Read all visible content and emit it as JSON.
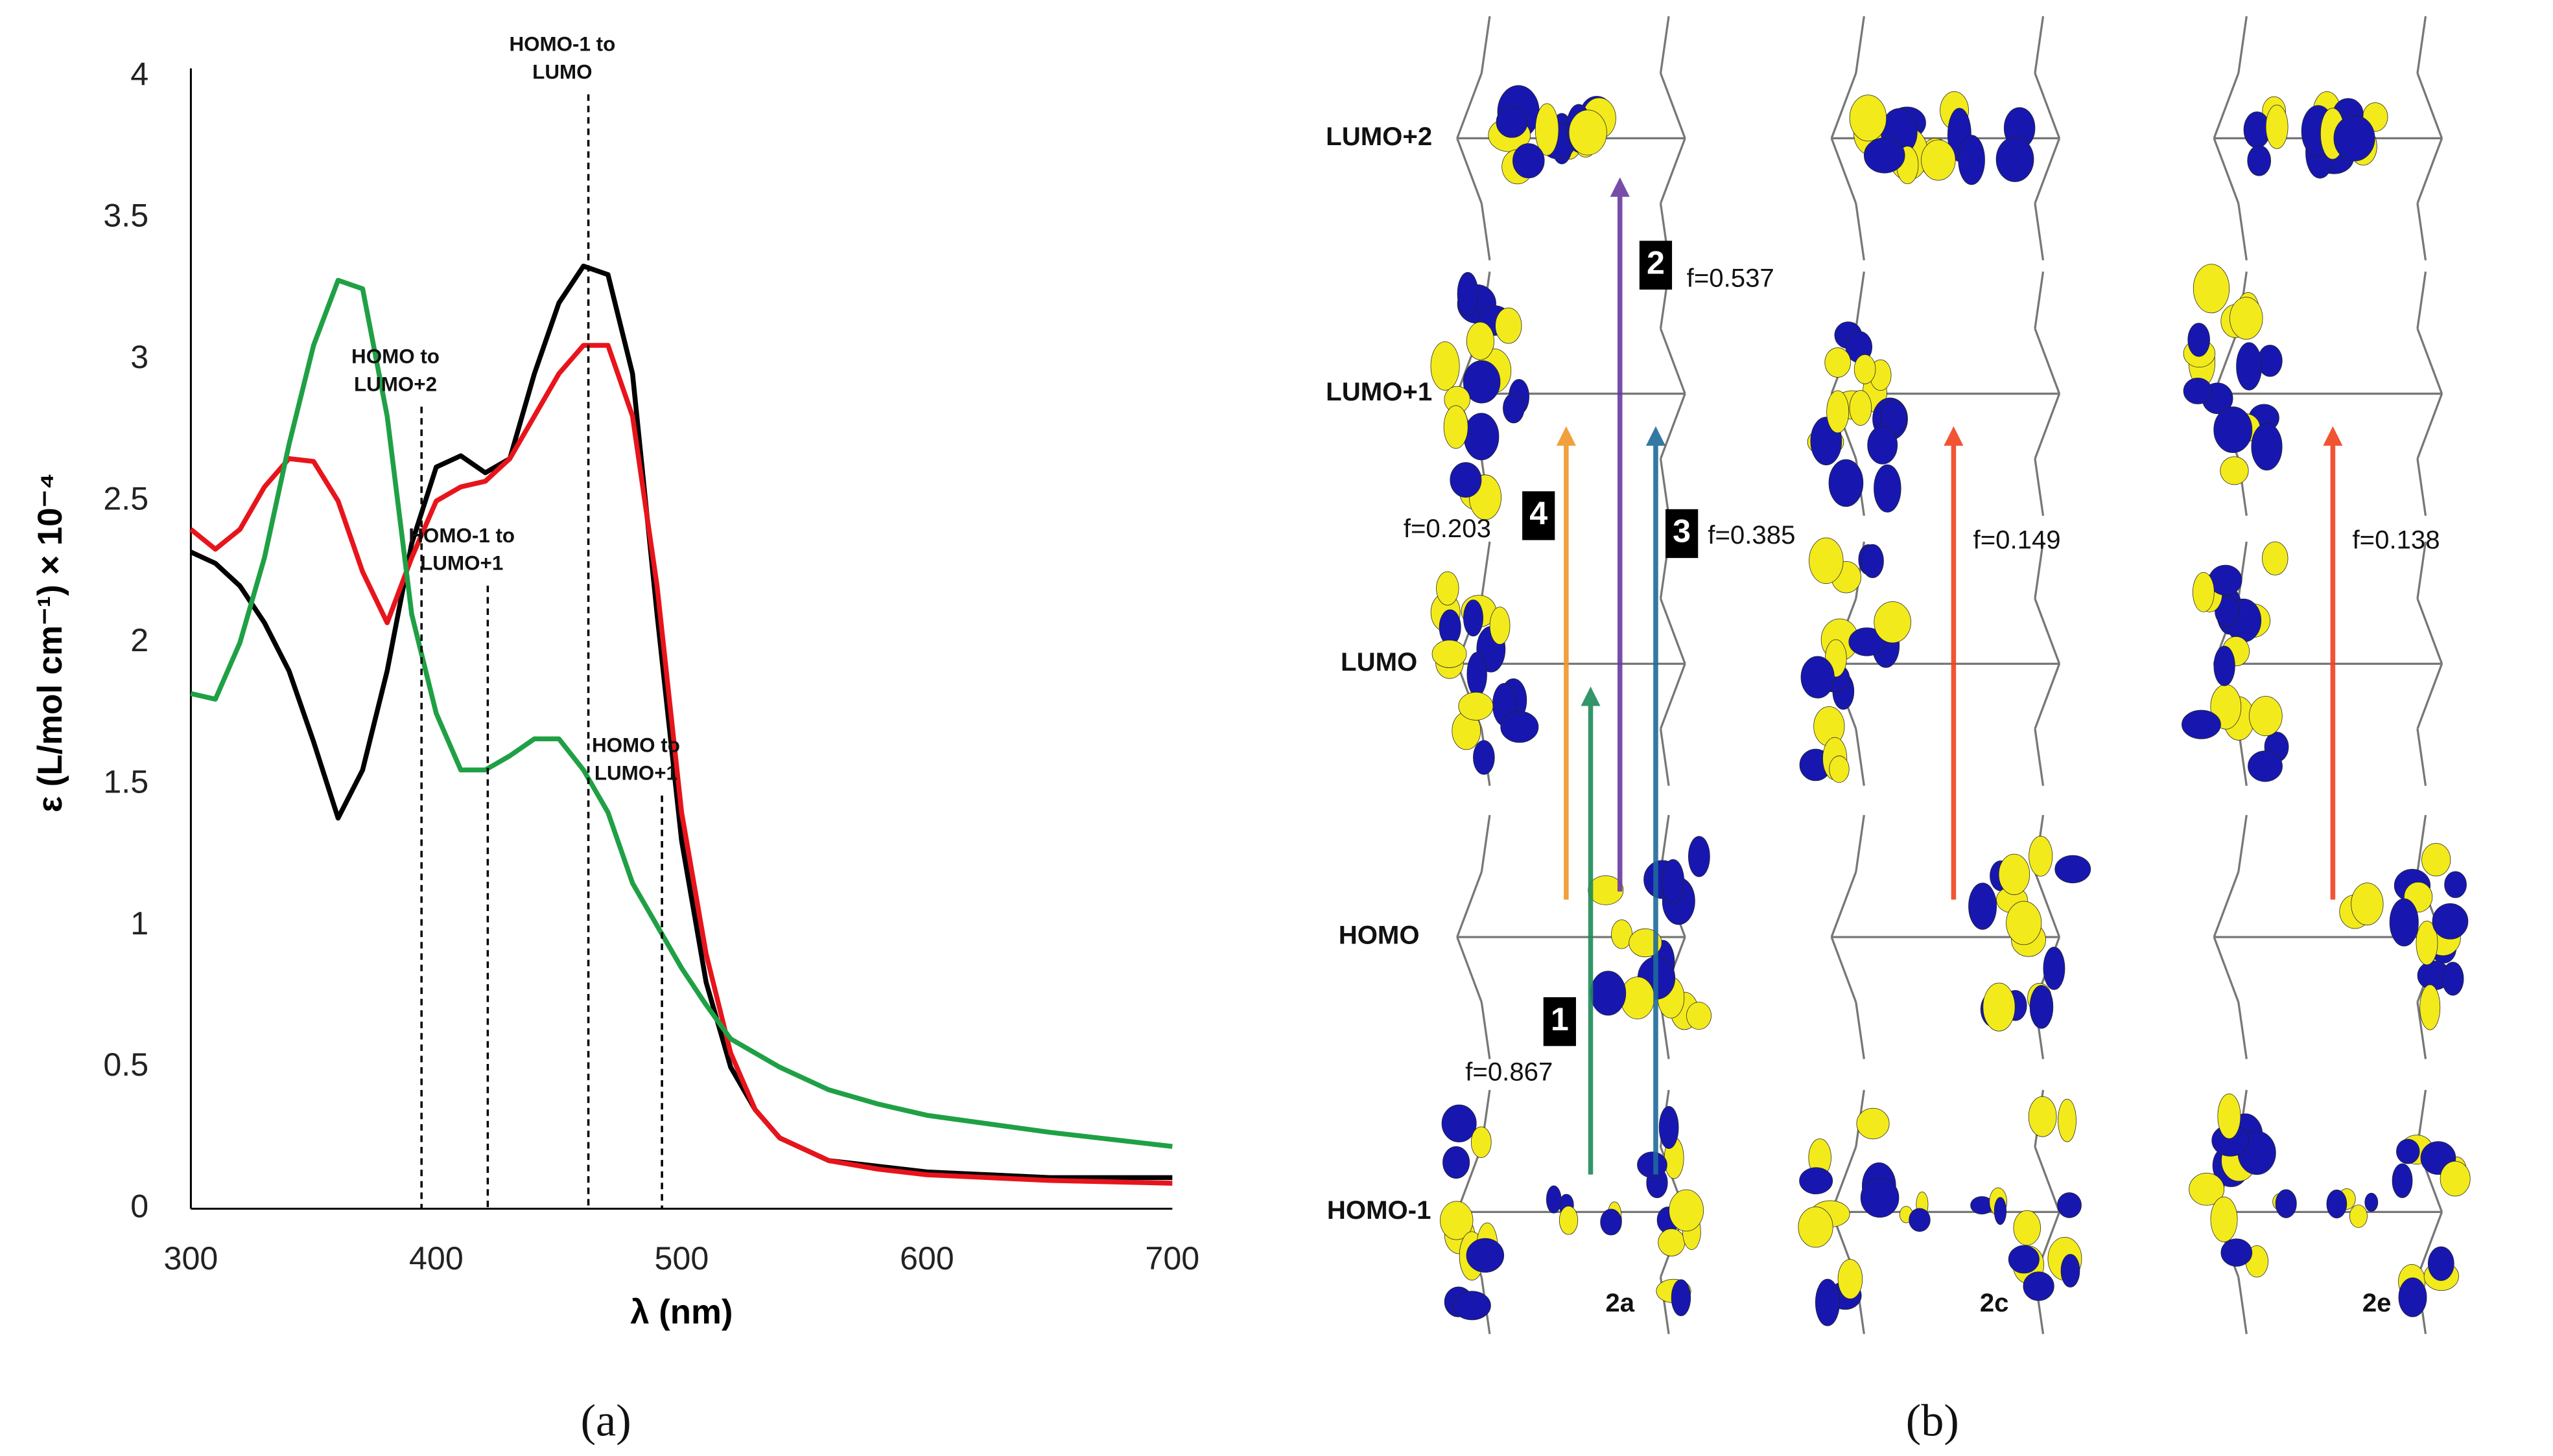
{
  "chart_data": {
    "type": "line",
    "x_label": "λ (nm)",
    "y_label": "ε (L/mol cm⁻¹) × 10⁻⁴",
    "x": [
      300,
      310,
      320,
      330,
      340,
      350,
      360,
      370,
      380,
      390,
      400,
      410,
      420,
      430,
      440,
      450,
      460,
      470,
      480,
      490,
      500,
      510,
      520,
      530,
      540,
      560,
      580,
      600,
      650,
      700
    ],
    "series": [
      {
        "color": "#000000",
        "values": [
          2.32,
          2.28,
          2.2,
          2.07,
          1.9,
          1.65,
          1.38,
          1.55,
          1.9,
          2.35,
          2.62,
          2.66,
          2.6,
          2.65,
          2.95,
          3.2,
          3.33,
          3.3,
          2.95,
          2.1,
          1.3,
          0.8,
          0.5,
          0.35,
          0.25,
          0.17,
          0.15,
          0.13,
          0.11,
          0.11
        ]
      },
      {
        "color": "#e8141b",
        "values": [
          2.4,
          2.33,
          2.4,
          2.55,
          2.65,
          2.64,
          2.5,
          2.25,
          2.07,
          2.3,
          2.5,
          2.55,
          2.57,
          2.65,
          2.8,
          2.95,
          3.05,
          3.05,
          2.8,
          2.2,
          1.4,
          0.9,
          0.55,
          0.35,
          0.25,
          0.17,
          0.14,
          0.12,
          0.1,
          0.09
        ]
      },
      {
        "color": "#1fa045",
        "values": [
          1.82,
          1.8,
          2.0,
          2.3,
          2.7,
          3.05,
          3.28,
          3.25,
          2.8,
          2.1,
          1.75,
          1.55,
          1.55,
          1.6,
          1.66,
          1.66,
          1.55,
          1.4,
          1.15,
          1.0,
          0.85,
          0.72,
          0.6,
          0.55,
          0.5,
          0.42,
          0.37,
          0.33,
          0.27,
          0.22
        ]
      }
    ],
    "annotations": [
      {
        "x": 462,
        "text": [
          "HOMO-1 to",
          "LUMO"
        ]
      },
      {
        "x": 394,
        "text": [
          "HOMO to",
          "LUMO+2"
        ]
      },
      {
        "x": 421,
        "text": [
          "HOMO-1 to",
          "LUMO+1"
        ]
      },
      {
        "x": 492,
        "text": [
          "HOMO to",
          "LUMO+1"
        ]
      }
    ],
    "xlim": [
      300,
      700
    ],
    "ylim": [
      0,
      4
    ],
    "xticks": [
      300,
      400,
      500,
      600,
      700
    ],
    "yticks": [
      0,
      0.5,
      1,
      1.5,
      2,
      2.5,
      3,
      3.5,
      4
    ],
    "grid": false
  },
  "diagram": {
    "rows": [
      "LUMO+2",
      "LUMO+1",
      "LUMO",
      "HOMO",
      "HOMO-1"
    ],
    "columns": [
      "2a",
      "2c",
      "2e"
    ],
    "transitions": [
      {
        "number": "1",
        "f": "f=0.867"
      },
      {
        "number": "2",
        "f": "f=0.537"
      },
      {
        "number": "3",
        "f": "f=0.385"
      },
      {
        "number": "4",
        "f": "f=0.203"
      }
    ],
    "other_f": [
      "f=0.149",
      "f=0.138"
    ]
  },
  "panel_labels": [
    "(a)",
    "(b)"
  ]
}
